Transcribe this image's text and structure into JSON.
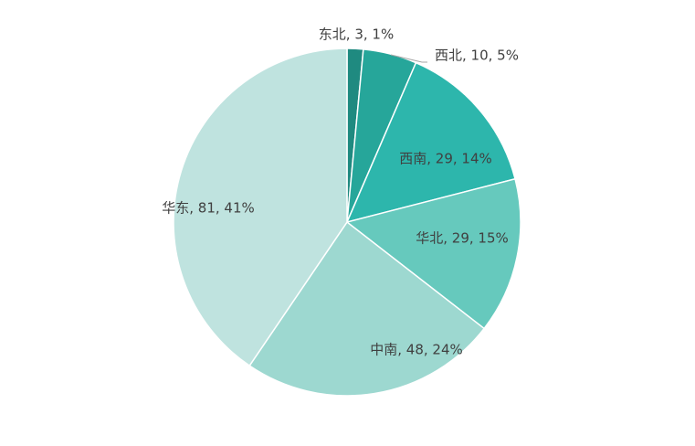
{
  "chart_data": {
    "type": "pie",
    "categories": [
      "东北",
      "西北",
      "西南",
      "华北",
      "中南",
      "华东"
    ],
    "values": [
      3,
      10,
      29,
      29,
      48,
      81
    ],
    "value_labels": [
      "东北, 3, 1%",
      "西北, 10, 5%",
      "西南, 29, 14%",
      "华北, 29, 15%",
      "中南, 48, 24%",
      "华东, 81, 41%"
    ],
    "colors": [
      "#1f8a80",
      "#26a69a",
      "#2db6ac",
      "#66c9bd",
      "#9dd8d0",
      "#bfe3df"
    ]
  }
}
